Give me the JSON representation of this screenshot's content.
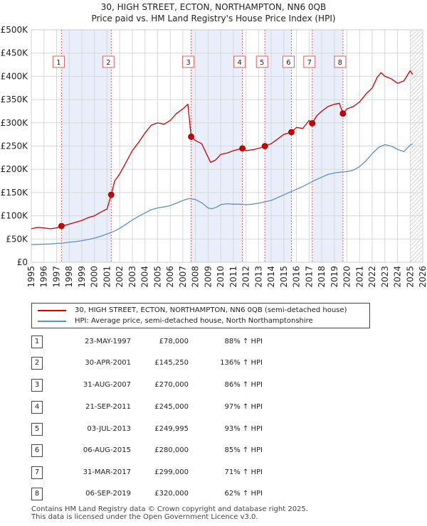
{
  "title_line1": "30, HIGH STREET, ECTON, NORTHAMPTON, NN6 0QB",
  "title_line2": "Price paid vs. HM Land Registry's House Price Index (HPI)",
  "legend": {
    "property": "30, HIGH STREET, ECTON, NORTHAMPTON, NN6 0QB (semi-detached house)",
    "hpi": "HPI: Average price, semi-detached house, North Northamptonshire"
  },
  "colors": {
    "property": "#cc0000",
    "hpi": "#5b8fc9",
    "band": "#e8eefa",
    "vline": "#e06060",
    "grid": "#d8d8d8"
  },
  "chart_data": {
    "type": "line",
    "xlim": [
      1995,
      2026
    ],
    "ylim": [
      0,
      500000
    ],
    "x_ticks": [
      1995,
      1996,
      1997,
      1998,
      1999,
      2000,
      2001,
      2002,
      2003,
      2004,
      2005,
      2006,
      2007,
      2008,
      2009,
      2010,
      2011,
      2012,
      2013,
      2014,
      2015,
      2016,
      2017,
      2018,
      2019,
      2020,
      2021,
      2022,
      2023,
      2024,
      2025,
      2026
    ],
    "y_ticks": [
      {
        "value": 0,
        "label": "£0"
      },
      {
        "value": 50000,
        "label": "£50K"
      },
      {
        "value": 100000,
        "label": "£100K"
      },
      {
        "value": 150000,
        "label": "£150K"
      },
      {
        "value": 200000,
        "label": "£200K"
      },
      {
        "value": 250000,
        "label": "£250K"
      },
      {
        "value": 300000,
        "label": "£300K"
      },
      {
        "value": 350000,
        "label": "£350K"
      },
      {
        "value": 400000,
        "label": "£400K"
      },
      {
        "value": 450000,
        "label": "£450K"
      },
      {
        "value": 500000,
        "label": "£500K"
      }
    ],
    "series": [
      {
        "name": "30, HIGH STREET, ECTON, NORTHAMPTON, NN6 0QB (semi-detached house)",
        "color": "#cc0000",
        "x": [
          1995.0,
          1995.5,
          1996.0,
          1996.5,
          1997.0,
          1997.39,
          1998.0,
          1998.5,
          1999.0,
          1999.5,
          2000.0,
          2000.5,
          2001.0,
          2001.33,
          2001.6,
          2002.0,
          2002.5,
          2003.0,
          2003.5,
          2004.0,
          2004.5,
          2005.0,
          2005.5,
          2006.0,
          2006.5,
          2007.0,
          2007.4,
          2007.66,
          2008.0,
          2008.5,
          2008.9,
          2009.2,
          2009.6,
          2010.0,
          2010.5,
          2011.0,
          2011.4,
          2011.72,
          2012.0,
          2012.5,
          2013.0,
          2013.5,
          2014.0,
          2014.5,
          2015.0,
          2015.6,
          2016.0,
          2016.5,
          2017.0,
          2017.25,
          2017.6,
          2018.0,
          2018.5,
          2019.0,
          2019.4,
          2019.68,
          2020.0,
          2020.5,
          2021.0,
          2021.5,
          2022.0,
          2022.4,
          2022.7,
          2023.0,
          2023.5,
          2024.0,
          2024.5,
          2025.0,
          2025.2
        ],
        "values": [
          72000,
          75000,
          74000,
          72000,
          74000,
          78000,
          82000,
          86000,
          90000,
          96000,
          100000,
          108000,
          115000,
          145250,
          175000,
          190000,
          215000,
          240000,
          258000,
          278000,
          295000,
          300000,
          297000,
          305000,
          320000,
          330000,
          340000,
          270000,
          262000,
          255000,
          232000,
          215000,
          220000,
          232000,
          235000,
          240000,
          243000,
          245000,
          240000,
          242000,
          245000,
          249995,
          255000,
          265000,
          275000,
          280000,
          290000,
          288000,
          305000,
          299000,
          315000,
          325000,
          335000,
          340000,
          342000,
          320000,
          330000,
          335000,
          345000,
          362000,
          375000,
          398000,
          408000,
          400000,
          395000,
          385000,
          390000,
          412000,
          404000
        ]
      },
      {
        "name": "HPI: Average price, semi-detached house, North Northamptonshire",
        "color": "#5b8fc9",
        "x": [
          1995.0,
          1995.5,
          1996.0,
          1996.5,
          1997.0,
          1997.5,
          1998.0,
          1998.5,
          1999.0,
          1999.5,
          2000.0,
          2000.5,
          2001.0,
          2001.5,
          2002.0,
          2002.5,
          2003.0,
          2003.5,
          2004.0,
          2004.5,
          2005.0,
          2005.5,
          2006.0,
          2006.5,
          2007.0,
          2007.5,
          2008.0,
          2008.5,
          2009.0,
          2009.3,
          2009.7,
          2010.0,
          2010.5,
          2011.0,
          2011.5,
          2012.0,
          2012.5,
          2013.0,
          2013.5,
          2014.0,
          2014.5,
          2015.0,
          2015.5,
          2016.0,
          2016.5,
          2017.0,
          2017.5,
          2018.0,
          2018.5,
          2019.0,
          2019.5,
          2020.0,
          2020.5,
          2021.0,
          2021.5,
          2022.0,
          2022.5,
          2023.0,
          2023.5,
          2024.0,
          2024.5,
          2025.0,
          2025.2
        ],
        "values": [
          38000,
          38500,
          39000,
          39500,
          40500,
          41500,
          43000,
          44500,
          46500,
          49000,
          52000,
          56000,
          61000,
          66000,
          73000,
          82000,
          91000,
          99000,
          106000,
          113000,
          117000,
          119000,
          122000,
          127000,
          133000,
          137000,
          135000,
          128000,
          117000,
          115000,
          119000,
          124000,
          126000,
          125000,
          125000,
          124000,
          125000,
          127000,
          130000,
          133000,
          139000,
          145000,
          151000,
          157000,
          163000,
          170000,
          177000,
          183000,
          189000,
          192000,
          194000,
          195000,
          198000,
          206000,
          218000,
          234000,
          247000,
          253000,
          250000,
          243000,
          238000,
          252000,
          255000
        ]
      }
    ],
    "sales": [
      {
        "id": "1",
        "x": 1997.39,
        "y": 78000
      },
      {
        "id": "2",
        "x": 2001.33,
        "y": 145250
      },
      {
        "id": "3",
        "x": 2007.66,
        "y": 270000
      },
      {
        "id": "4",
        "x": 2011.72,
        "y": 245000
      },
      {
        "id": "5",
        "x": 2013.5,
        "y": 249995
      },
      {
        "id": "6",
        "x": 2015.6,
        "y": 280000
      },
      {
        "id": "7",
        "x": 2017.25,
        "y": 299000
      },
      {
        "id": "8",
        "x": 2019.68,
        "y": 320000
      }
    ],
    "bands": [
      [
        1997.39,
        2001.33
      ],
      [
        2007.66,
        2011.72
      ],
      [
        2013.5,
        2015.6
      ],
      [
        2017.25,
        2019.68
      ]
    ],
    "hatch_from": 2025.0
  },
  "table": [
    {
      "num": "1",
      "date": "23-MAY-1997",
      "price": "£78,000",
      "hpi": "88% ↑ HPI"
    },
    {
      "num": "2",
      "date": "30-APR-2001",
      "price": "£145,250",
      "hpi": "136% ↑ HPI"
    },
    {
      "num": "3",
      "date": "31-AUG-2007",
      "price": "£270,000",
      "hpi": "86% ↑ HPI"
    },
    {
      "num": "4",
      "date": "21-SEP-2011",
      "price": "£245,000",
      "hpi": "97% ↑ HPI"
    },
    {
      "num": "5",
      "date": "03-JUL-2013",
      "price": "£249,995",
      "hpi": "93% ↑ HPI"
    },
    {
      "num": "6",
      "date": "06-AUG-2015",
      "price": "£280,000",
      "hpi": "85% ↑ HPI"
    },
    {
      "num": "7",
      "date": "31-MAR-2017",
      "price": "£299,000",
      "hpi": "71% ↑ HPI"
    },
    {
      "num": "8",
      "date": "06-SEP-2019",
      "price": "£320,000",
      "hpi": "62% ↑ HPI"
    }
  ],
  "footer": {
    "line1": "Contains HM Land Registry data © Crown copyright and database right 2025.",
    "line2": "This data is licensed under the Open Government Licence v3.0."
  }
}
